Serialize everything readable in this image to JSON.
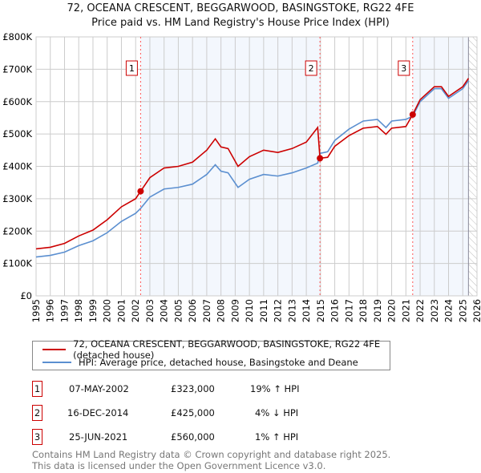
{
  "title": "72, OCEANA CRESCENT, BEGGARWOOD, BASINGSTOKE, RG22 4FE",
  "subtitle": "Price paid vs. HM Land Registry's House Price Index (HPI)",
  "chart_data": {
    "type": "line",
    "ylim": [
      0,
      800000
    ],
    "xlim": [
      1995,
      2026
    ],
    "yticks": [
      {
        "v": 0,
        "label": "£0"
      },
      {
        "v": 100000,
        "label": "£100K"
      },
      {
        "v": 200000,
        "label": "£200K"
      },
      {
        "v": 300000,
        "label": "£300K"
      },
      {
        "v": 400000,
        "label": "£400K"
      },
      {
        "v": 500000,
        "label": "£500K"
      },
      {
        "v": 600000,
        "label": "£600K"
      },
      {
        "v": 700000,
        "label": "£700K"
      },
      {
        "v": 800000,
        "label": "£800K"
      }
    ],
    "xticks": [
      "1995",
      "1996",
      "1997",
      "1998",
      "1999",
      "2000",
      "2001",
      "2002",
      "2003",
      "2004",
      "2005",
      "2006",
      "2007",
      "2008",
      "2009",
      "2010",
      "2011",
      "2012",
      "2013",
      "2014",
      "2015",
      "2016",
      "2017",
      "2018",
      "2019",
      "2020",
      "2021",
      "2022",
      "2023",
      "2024",
      "2025",
      "2026"
    ],
    "series": [
      {
        "name": "72, OCEANA CRESCENT, BEGGARWOOD, BASINGSTOKE, RG22 4FE (detached house)",
        "color": "#cc0000",
        "x": [
          1995,
          1996,
          1997,
          1998,
          1999,
          2000,
          2001,
          2002,
          2002.35,
          2003,
          2004,
          2005,
          2006,
          2007,
          2007.6,
          2008,
          2008.5,
          2009.2,
          2010,
          2011,
          2012,
          2013,
          2014,
          2014.8,
          2014.96,
          2015.5,
          2016,
          2017,
          2018,
          2019,
          2019.6,
          2020,
          2021,
          2021.48,
          2022,
          2023,
          2023.5,
          2024,
          2025,
          2025.4
        ],
        "y": [
          145000,
          150000,
          162000,
          185000,
          203000,
          235000,
          275000,
          300000,
          323000,
          365000,
          395000,
          400000,
          413000,
          450000,
          485000,
          460000,
          455000,
          400000,
          430000,
          450000,
          443000,
          455000,
          475000,
          520000,
          425000,
          428000,
          462000,
          495000,
          518000,
          523000,
          499000,
          518000,
          523000,
          560000,
          606000,
          646000,
          646000,
          616000,
          646000,
          672000
        ]
      },
      {
        "name": "HPI: Average price, detached house, Basingstoke and Deane",
        "color": "#5b8fd0",
        "x": [
          1995,
          1996,
          1997,
          1998,
          1999,
          2000,
          2001,
          2002,
          2002.35,
          2003,
          2004,
          2005,
          2006,
          2007,
          2007.6,
          2008,
          2008.5,
          2009.2,
          2010,
          2011,
          2012,
          2013,
          2014,
          2014.8,
          2014.96,
          2015.5,
          2016,
          2017,
          2018,
          2019,
          2019.6,
          2020,
          2021,
          2021.48,
          2022,
          2023,
          2023.5,
          2024,
          2025,
          2025.4
        ],
        "y": [
          120000,
          125000,
          135000,
          155000,
          170000,
          195000,
          230000,
          255000,
          270000,
          305000,
          330000,
          335000,
          345000,
          375000,
          405000,
          385000,
          380000,
          335000,
          360000,
          375000,
          370000,
          380000,
          395000,
          410000,
          440000,
          445000,
          480000,
          515000,
          540000,
          545000,
          520000,
          540000,
          545000,
          555000,
          600000,
          640000,
          640000,
          610000,
          640000,
          665000
        ]
      }
    ],
    "sales": [
      {
        "label": "1",
        "x": 2002.35,
        "y": 323000
      },
      {
        "label": "2",
        "x": 2014.96,
        "y": 425000
      },
      {
        "label": "3",
        "x": 2021.48,
        "y": 560000
      }
    ],
    "forecast_from": 2025.4
  },
  "table": [
    {
      "n": "1",
      "date": "07-MAY-2002",
      "price": "£323,000",
      "hpi": "19% ↑ HPI"
    },
    {
      "n": "2",
      "date": "16-DEC-2014",
      "price": "£425,000",
      "hpi": "4% ↓ HPI"
    },
    {
      "n": "3",
      "date": "25-JUN-2021",
      "price": "£560,000",
      "hpi": "1% ↑ HPI"
    }
  ],
  "footer1": "Contains HM Land Registry data © Crown copyright and database right 2025.",
  "footer2": "This data is licensed under the Open Government Licence v3.0."
}
